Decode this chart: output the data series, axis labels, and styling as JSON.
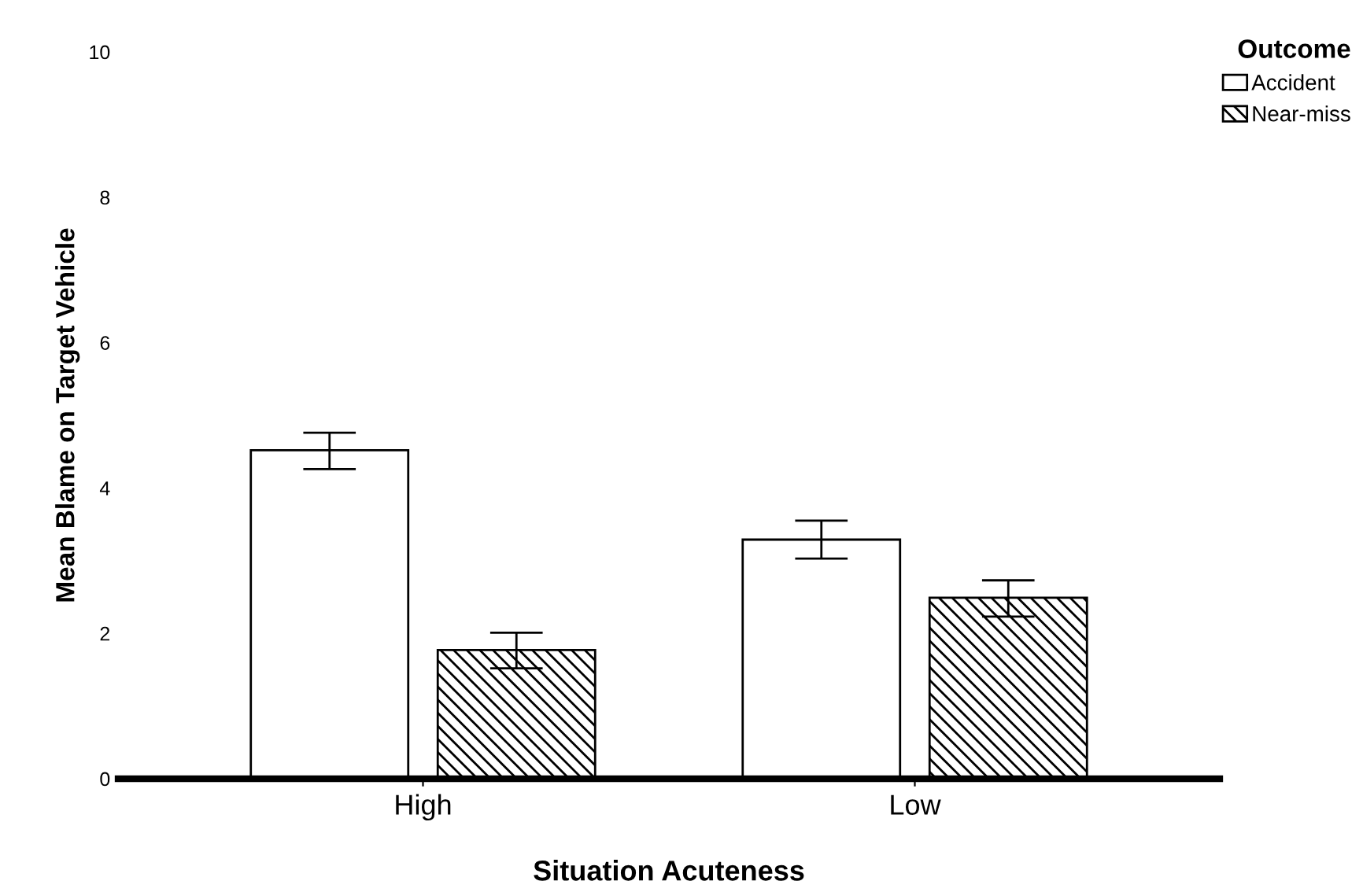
{
  "chart_data": {
    "type": "bar",
    "xlabel": "Situation Acuteness",
    "ylabel": "Mean Blame on Target Vehicle",
    "legend_title": "Outcome",
    "categories": [
      "High",
      "Low"
    ],
    "series": [
      {
        "name": "Accident",
        "color": "#ffffff",
        "values": [
          4.52,
          3.29
        ],
        "errors": [
          [
            4.26,
            4.76
          ],
          [
            3.03,
            3.55
          ]
        ]
      },
      {
        "name": "Near-miss",
        "color": "#000000",
        "values": [
          1.77,
          2.49
        ],
        "errors": [
          [
            1.52,
            2.01
          ],
          [
            2.23,
            2.73
          ]
        ]
      }
    ],
    "ylim": [
      0,
      10
    ],
    "yticks": [
      0,
      2,
      4,
      6,
      8,
      10
    ],
    "grid": false,
    "legend": "top right"
  }
}
